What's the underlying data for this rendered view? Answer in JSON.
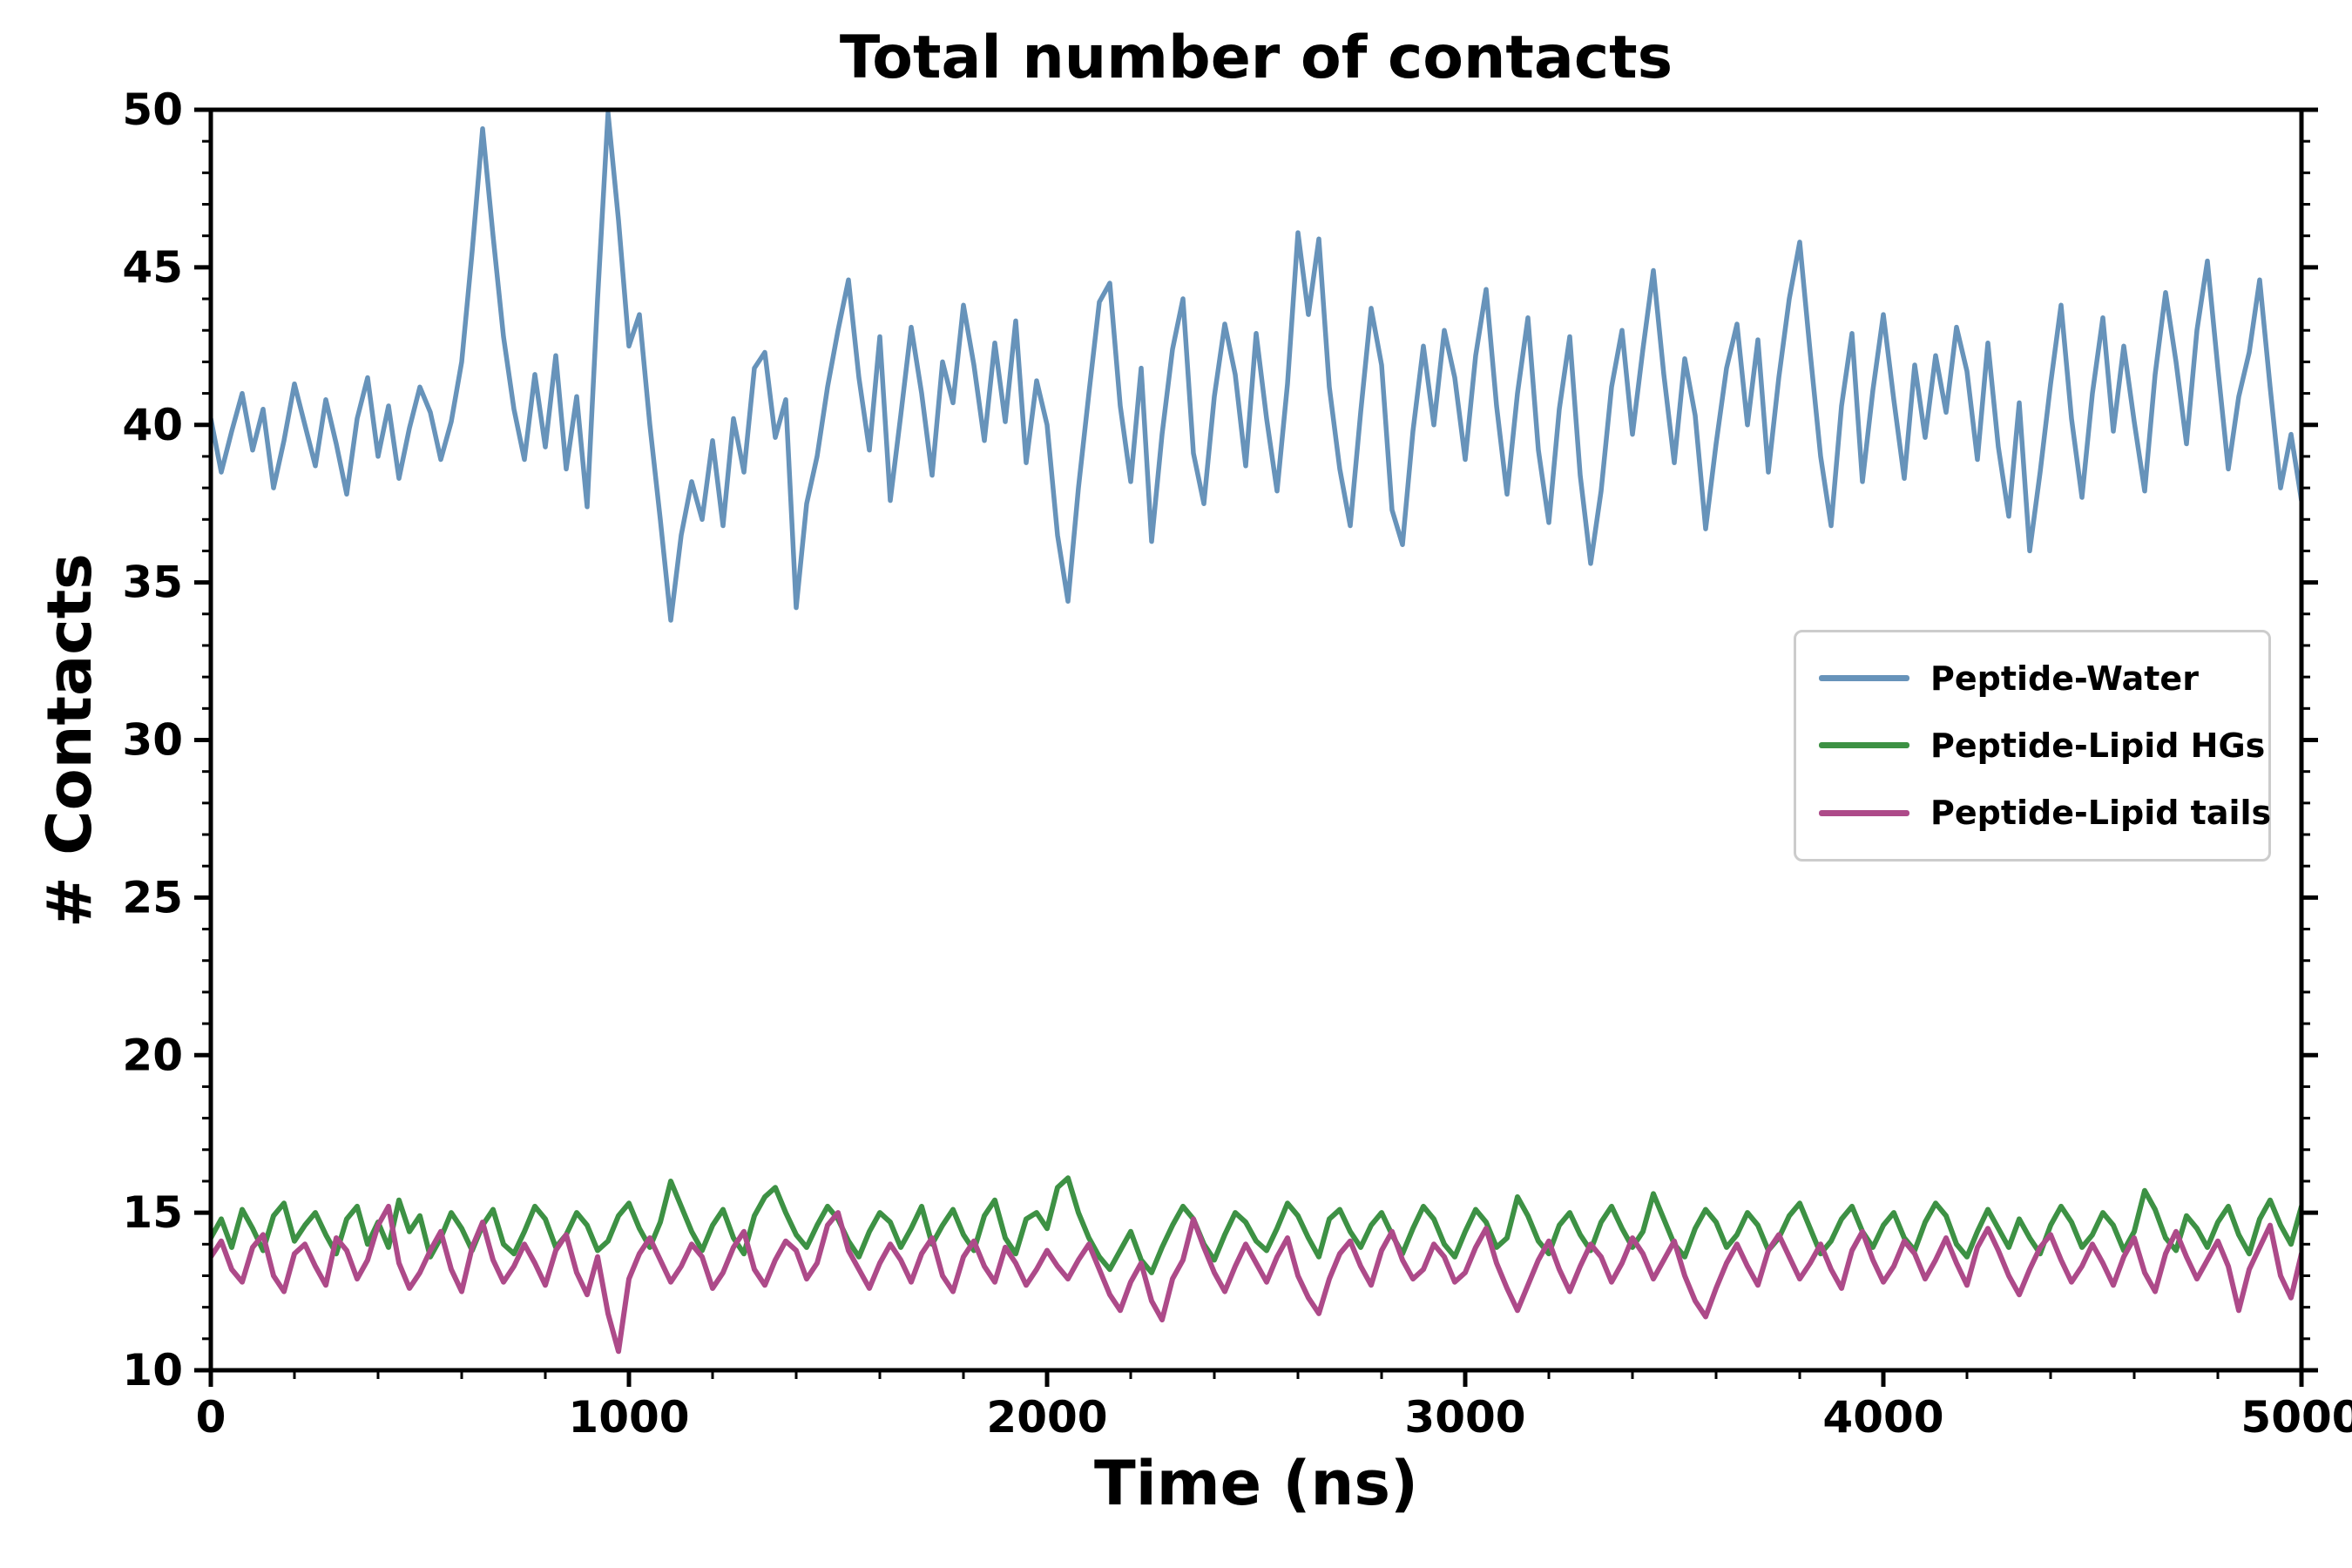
{
  "figure": {
    "background_color": "#ffffff",
    "axis_color": "#000000",
    "legend_border_color": "#cccccc"
  },
  "chart_data": {
    "type": "line",
    "title": "Total number of contacts",
    "xlabel": "Time (ns)",
    "ylabel": "# Contacts",
    "xlim": [
      0,
      5000
    ],
    "ylim": [
      10,
      50
    ],
    "x_ticks": [
      0,
      1000,
      2000,
      3000,
      4000,
      5000
    ],
    "x_tick_labels": [
      "0",
      "1000",
      "2000",
      "3000",
      "4000",
      "5000"
    ],
    "y_ticks": [
      10,
      15,
      20,
      25,
      30,
      35,
      40,
      45,
      50
    ],
    "y_tick_labels": [
      "10",
      "15",
      "20",
      "25",
      "30",
      "35",
      "40",
      "45",
      "50"
    ],
    "x_minor_step": 200,
    "y_minor_step": 1,
    "grid": false,
    "legend_position": "center-right",
    "x_start": 0,
    "x_step": 25,
    "series": [
      {
        "name": "peptide-water",
        "label": "Peptide-Water",
        "color": "#6793ba",
        "width": 5.5,
        "values": [
          40.2,
          38.5,
          39.8,
          41.0,
          39.2,
          40.5,
          38.0,
          39.5,
          41.3,
          40.0,
          38.7,
          40.8,
          39.4,
          37.8,
          40.2,
          41.5,
          39.0,
          40.6,
          38.3,
          39.9,
          41.2,
          40.4,
          38.9,
          40.1,
          42.0,
          45.5,
          49.4,
          46.0,
          42.8,
          40.5,
          38.9,
          41.6,
          39.3,
          42.2,
          38.6,
          40.9,
          37.4,
          44.0,
          49.9,
          46.5,
          42.5,
          43.5,
          40.0,
          37.0,
          33.8,
          36.5,
          38.2,
          37.0,
          39.5,
          36.8,
          40.2,
          38.5,
          41.8,
          42.3,
          39.6,
          40.8,
          34.2,
          37.5,
          39.0,
          41.2,
          43.0,
          44.6,
          41.5,
          39.2,
          42.8,
          37.6,
          40.3,
          43.1,
          41.0,
          38.4,
          42.0,
          40.7,
          43.8,
          41.9,
          39.5,
          42.6,
          40.1,
          43.3,
          38.8,
          41.4,
          40.0,
          36.5,
          34.4,
          38.0,
          41.0,
          43.9,
          44.5,
          40.6,
          38.2,
          41.8,
          36.3,
          39.7,
          42.4,
          44.0,
          39.1,
          37.5,
          40.9,
          43.2,
          41.6,
          38.7,
          42.9,
          40.2,
          37.9,
          41.3,
          46.1,
          43.5,
          45.9,
          41.2,
          38.6,
          36.8,
          40.4,
          43.7,
          41.9,
          37.3,
          36.2,
          39.8,
          42.5,
          40.0,
          43.0,
          41.5,
          38.9,
          42.2,
          44.3,
          40.6,
          37.8,
          41.0,
          43.4,
          39.2,
          36.9,
          40.5,
          42.8,
          38.4,
          35.6,
          37.9,
          41.2,
          43.0,
          39.7,
          42.4,
          44.9,
          41.6,
          38.8,
          42.1,
          40.3,
          36.7,
          39.4,
          41.8,
          43.2,
          40.0,
          42.7,
          38.5,
          41.5,
          44.0,
          45.8,
          42.3,
          39.0,
          36.8,
          40.6,
          42.9,
          38.2,
          41.1,
          43.5,
          40.8,
          38.3,
          41.9,
          39.6,
          42.2,
          40.4,
          43.1,
          41.7,
          38.9,
          42.6,
          39.3,
          37.1,
          40.7,
          36.0,
          38.5,
          41.3,
          43.8,
          40.2,
          37.7,
          41.0,
          43.4,
          39.8,
          42.5,
          40.1,
          37.9,
          41.6,
          44.2,
          42.0,
          39.4,
          43.0,
          45.2,
          41.8,
          38.6,
          40.9,
          42.3,
          44.6,
          41.2,
          38.0,
          39.7,
          37.6
        ]
      },
      {
        "name": "peptide-lipid-hgs",
        "label": "Peptide-Lipid HGs",
        "color": "#3d9144",
        "width": 6,
        "values": [
          14.2,
          14.8,
          13.9,
          15.1,
          14.5,
          13.8,
          14.9,
          15.3,
          14.1,
          14.6,
          15.0,
          14.3,
          13.7,
          14.8,
          15.2,
          14.0,
          14.7,
          13.9,
          15.4,
          14.4,
          14.9,
          13.6,
          14.2,
          15.0,
          14.5,
          13.8,
          14.6,
          15.1,
          14.0,
          13.7,
          14.4,
          15.2,
          14.8,
          13.9,
          14.3,
          15.0,
          14.6,
          13.8,
          14.1,
          14.9,
          15.3,
          14.5,
          13.9,
          14.7,
          16.0,
          15.2,
          14.4,
          13.8,
          14.6,
          15.1,
          14.2,
          13.7,
          14.9,
          15.5,
          15.8,
          15.0,
          14.3,
          13.9,
          14.6,
          15.2,
          14.8,
          14.1,
          13.6,
          14.4,
          15.0,
          14.7,
          13.9,
          14.5,
          15.2,
          14.0,
          14.6,
          15.1,
          14.3,
          13.8,
          14.9,
          15.4,
          14.2,
          13.7,
          14.8,
          15.0,
          14.5,
          15.8,
          16.1,
          15.0,
          14.2,
          13.6,
          13.2,
          13.8,
          14.4,
          13.5,
          13.1,
          13.9,
          14.6,
          15.2,
          14.8,
          14.0,
          13.5,
          14.3,
          15.0,
          14.7,
          14.1,
          13.8,
          14.5,
          15.3,
          14.9,
          14.2,
          13.6,
          14.8,
          15.1,
          14.4,
          13.9,
          14.6,
          15.0,
          14.3,
          13.7,
          14.5,
          15.2,
          14.8,
          14.0,
          13.6,
          14.4,
          15.1,
          14.7,
          13.9,
          14.2,
          15.5,
          14.9,
          14.1,
          13.7,
          14.6,
          15.0,
          14.3,
          13.8,
          14.7,
          15.2,
          14.5,
          13.9,
          14.4,
          15.6,
          14.8,
          14.0,
          13.6,
          14.5,
          15.1,
          14.7,
          13.9,
          14.3,
          15.0,
          14.6,
          13.8,
          14.2,
          14.9,
          15.3,
          14.5,
          13.7,
          14.1,
          14.8,
          15.2,
          14.4,
          13.9,
          14.6,
          15.0,
          14.2,
          13.8,
          14.7,
          15.3,
          14.9,
          14.0,
          13.6,
          14.4,
          15.1,
          14.5,
          13.9,
          14.8,
          14.2,
          13.7,
          14.6,
          15.2,
          14.7,
          13.9,
          14.3,
          15.0,
          14.6,
          13.8,
          14.4,
          15.7,
          15.1,
          14.2,
          13.8,
          14.9,
          14.5,
          13.9,
          14.7,
          15.2,
          14.3,
          13.7,
          14.8,
          15.4,
          14.6,
          14.0,
          15.2
        ]
      },
      {
        "name": "peptide-lipid-tails",
        "label": "Peptide-Lipid tails",
        "color": "#ad4a89",
        "width": 6,
        "values": [
          13.6,
          14.1,
          13.2,
          12.8,
          13.9,
          14.3,
          13.0,
          12.5,
          13.7,
          14.0,
          13.3,
          12.7,
          14.2,
          13.8,
          12.9,
          13.5,
          14.6,
          15.2,
          13.4,
          12.6,
          13.1,
          13.8,
          14.4,
          13.2,
          12.5,
          13.9,
          14.7,
          13.5,
          12.8,
          13.3,
          14.0,
          13.4,
          12.7,
          13.8,
          14.3,
          13.1,
          12.4,
          13.6,
          11.8,
          10.6,
          12.9,
          13.7,
          14.2,
          13.5,
          12.8,
          13.3,
          14.0,
          13.6,
          12.6,
          13.1,
          13.9,
          14.4,
          13.2,
          12.7,
          13.5,
          14.1,
          13.8,
          12.9,
          13.4,
          14.6,
          15.0,
          13.8,
          13.2,
          12.6,
          13.4,
          14.0,
          13.5,
          12.8,
          13.7,
          14.2,
          13.0,
          12.5,
          13.6,
          14.1,
          13.3,
          12.8,
          13.9,
          13.4,
          12.7,
          13.2,
          13.8,
          13.3,
          12.9,
          13.5,
          14.0,
          13.2,
          12.4,
          11.9,
          12.8,
          13.4,
          12.2,
          11.6,
          12.9,
          13.5,
          14.8,
          13.9,
          13.1,
          12.5,
          13.3,
          14.0,
          13.4,
          12.8,
          13.6,
          14.2,
          13.0,
          12.3,
          11.8,
          12.9,
          13.7,
          14.1,
          13.3,
          12.7,
          13.8,
          14.4,
          13.5,
          12.9,
          13.2,
          14.0,
          13.6,
          12.8,
          13.1,
          13.9,
          14.5,
          13.4,
          12.6,
          11.9,
          12.7,
          13.5,
          14.1,
          13.2,
          12.5,
          13.3,
          14.0,
          13.6,
          12.8,
          13.4,
          14.2,
          13.7,
          12.9,
          13.5,
          14.1,
          13.0,
          12.2,
          11.7,
          12.6,
          13.4,
          14.0,
          13.3,
          12.7,
          13.8,
          14.3,
          13.6,
          12.9,
          13.4,
          14.0,
          13.2,
          12.6,
          13.8,
          14.4,
          13.5,
          12.8,
          13.3,
          14.1,
          13.7,
          12.9,
          13.5,
          14.2,
          13.4,
          12.7,
          13.9,
          14.5,
          13.8,
          13.0,
          12.4,
          13.2,
          13.9,
          14.3,
          13.5,
          12.8,
          13.3,
          14.0,
          13.4,
          12.7,
          13.6,
          14.2,
          13.1,
          12.5,
          13.7,
          14.4,
          13.6,
          12.9,
          13.5,
          14.1,
          13.3,
          11.9,
          13.2,
          13.9,
          14.6,
          13.0,
          12.3,
          13.7
        ]
      }
    ]
  }
}
